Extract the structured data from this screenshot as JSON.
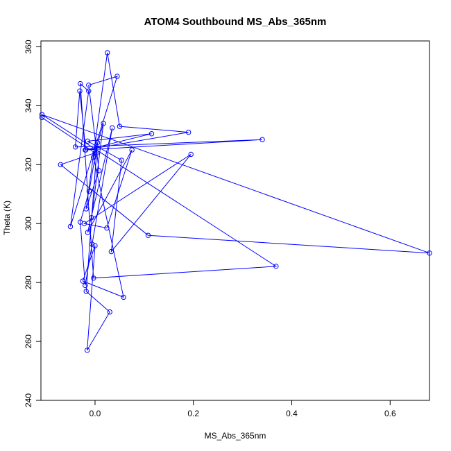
{
  "chart_data": {
    "type": "line",
    "title": "ATOM4 Southbound MS_Abs_365nm",
    "xlabel": "MS_Abs_365nm",
    "ylabel": "Theta (K)",
    "xlim": [
      -0.11,
      0.68
    ],
    "ylim": [
      240,
      362
    ],
    "xticks": [
      0.0,
      0.2,
      0.4,
      0.6
    ],
    "xtick_labels": [
      "0.0",
      "0.2",
      "0.4",
      "0.6"
    ],
    "yticks": [
      240,
      260,
      280,
      300,
      320,
      340,
      360
    ],
    "ytick_labels": [
      "240",
      "260",
      "280",
      "300",
      "320",
      "340",
      "360"
    ],
    "grid": false,
    "legend": "none",
    "marker": "open-circle",
    "color": "#0000ff",
    "series": [
      {
        "x": [
          -0.108,
          0.0,
          -0.07,
          0.108,
          0.68,
          -0.108,
          0.368,
          -0.003,
          -0.03,
          -0.013,
          -0.05,
          0.045,
          -0.013,
          0.008,
          -0.018,
          0.025,
          0.05,
          0.19,
          -0.02,
          0.34,
          -0.04,
          -0.031,
          -0.019,
          0.115,
          -0.015,
          0.054,
          0.033,
          0.195,
          -0.022,
          0.024,
          0.075,
          -0.015,
          0.035,
          -0.006,
          -0.02,
          -0.03,
          -0.012,
          0.005,
          -0.007,
          0.017,
          -0.003,
          0.058,
          -0.025,
          0.0,
          -0.016,
          0.03,
          -0.018,
          0.003
        ],
        "y": [
          336.0,
          324.0,
          320.0,
          296.0,
          290.0,
          337.0,
          285.5,
          281.5,
          347.5,
          345.0,
          299.0,
          350.0,
          347.0,
          318.0,
          305.0,
          358.0,
          333.0,
          331.0,
          325.0,
          328.5,
          326.0,
          345.0,
          325.0,
          330.5,
          328.0,
          321.5,
          290.5,
          323.5,
          300.0,
          298.5,
          325.0,
          297.0,
          332.5,
          293.0,
          279.0,
          300.5,
          311.0,
          327.5,
          302.0,
          334.0,
          322.5,
          275.0,
          280.5,
          292.5,
          257.0,
          270.0,
          277.0,
          324.0
        ]
      }
    ]
  }
}
